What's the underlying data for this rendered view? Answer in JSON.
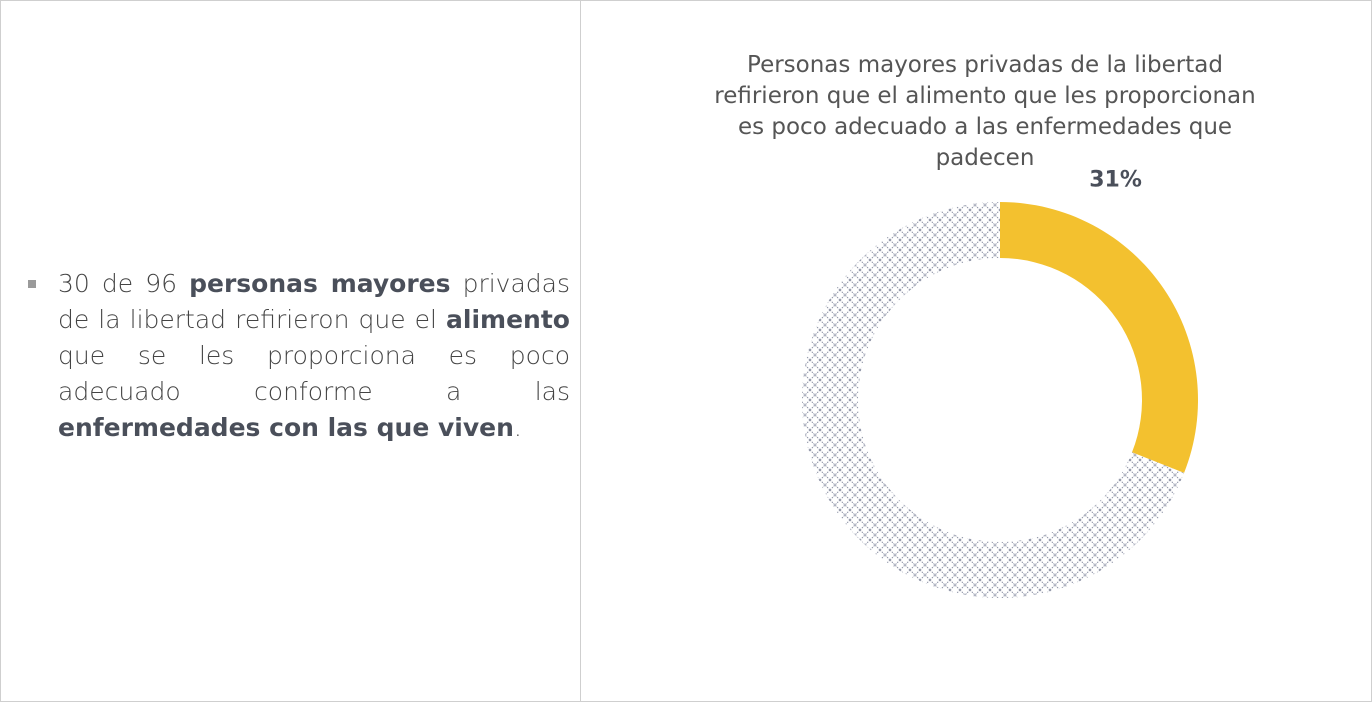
{
  "text": {
    "segments": [
      {
        "text": "30 de 96 ",
        "bold": false
      },
      {
        "text": "personas mayores",
        "bold": true
      },
      {
        "text": " privadas de la libertad refirieron que el ",
        "bold": false
      },
      {
        "text": "alimento",
        "bold": true
      },
      {
        "text": " que se les proporciona es poco adecuado conforme a las ",
        "bold": false
      },
      {
        "text": "enfermedades con las que viven",
        "bold": true
      },
      {
        "text": ".",
        "bold": false
      }
    ]
  },
  "chart_data": {
    "type": "donut",
    "title": "Personas mayores privadas de la libertad refirieron que el alimento que les proporcionan es poco adecuado a las enfermedades que padecen",
    "values": [
      31,
      69
    ],
    "value_labels": [
      "31%",
      null
    ],
    "colors": [
      "#f3c12f",
      "#8e93a6"
    ],
    "hatch": [
      false,
      true
    ]
  }
}
